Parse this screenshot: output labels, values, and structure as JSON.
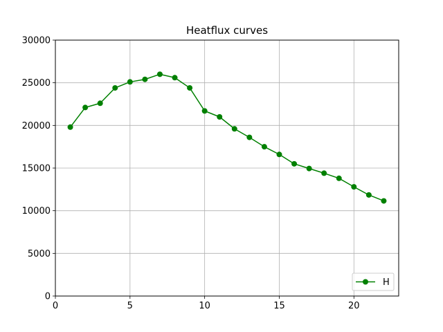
{
  "chart_data": {
    "type": "line",
    "title": "Heatflux curves",
    "xlabel": "",
    "ylabel": "",
    "xlim": [
      0,
      23
    ],
    "ylim": [
      0,
      30000
    ],
    "xticks": [
      0,
      5,
      10,
      15,
      20
    ],
    "yticks": [
      0,
      5000,
      10000,
      15000,
      20000,
      25000,
      30000
    ],
    "grid": true,
    "legend_position": "lower-right",
    "x": [
      1,
      2,
      3,
      4,
      5,
      6,
      7,
      8,
      9,
      10,
      11,
      12,
      13,
      14,
      15,
      16,
      17,
      18,
      19,
      20,
      21,
      22
    ],
    "series": [
      {
        "name": "H",
        "color": "#008000",
        "marker": "circle",
        "values": [
          19800,
          22100,
          22600,
          24400,
          25100,
          25400,
          26000,
          25600,
          24400,
          21700,
          21000,
          19600,
          18600,
          17500,
          16600,
          15500,
          14950,
          14400,
          13800,
          12800,
          11850,
          11150
        ]
      }
    ]
  }
}
